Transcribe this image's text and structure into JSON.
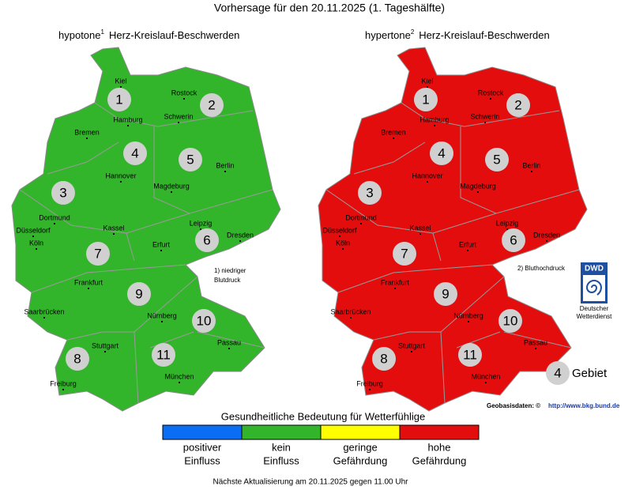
{
  "title": "Vorhersage für den 20.11.2025 (1. Tageshälfte)",
  "maps": [
    {
      "heading": "hypotone",
      "superscript": "1",
      "subject": "Herz-Kreislauf-Beschwerden",
      "note": [
        "1) niedriger",
        "Blutdruck"
      ]
    },
    {
      "heading": "hypertone",
      "superscript": "2",
      "subject": "Herz-Kreislauf-Beschwerden",
      "note": [
        "2) Bluthochdruck"
      ]
    }
  ],
  "regions": [
    1,
    2,
    3,
    4,
    5,
    6,
    7,
    8,
    9,
    10,
    11
  ],
  "cities": [
    "Kiel",
    "Rostock",
    "Hamburg",
    "Schwerin",
    "Bremen",
    "Hannover",
    "Berlin",
    "Magdeburg",
    "Dortmund",
    "Düsseldorf",
    "Köln",
    "Kassel",
    "Leipzig",
    "Dresden",
    "Erfurt",
    "Frankfurt",
    "Saarbrücken",
    "Nürnberg",
    "Passau",
    "Stuttgart",
    "München",
    "Freiburg"
  ],
  "logo": {
    "abbr": "DWD",
    "name": [
      "Deutscher",
      "Wetterdienst"
    ]
  },
  "key": {
    "number": 4,
    "label": "Gebiet"
  },
  "source": {
    "label": "Geobasisdaten: ©",
    "url": "http://www.bkg.bund.de"
  },
  "legend": {
    "title": "Gesundheitliche Bedeutung für Wetterfühlige",
    "items": [
      {
        "label": [
          "positiver",
          "Einfluss"
        ],
        "color": "#0a6ef5"
      },
      {
        "label": [
          "kein",
          "Einfluss"
        ],
        "color": "#33b52b"
      },
      {
        "label": [
          "geringe",
          "Gefährdung"
        ],
        "color": "#ffff00"
      },
      {
        "label": [
          "hohe",
          "Gefährdung"
        ],
        "color": "#e30d0d"
      }
    ]
  },
  "footer": "Nächste Aktualisierung am 20.11.2025 gegen 11.00 Uhr"
}
